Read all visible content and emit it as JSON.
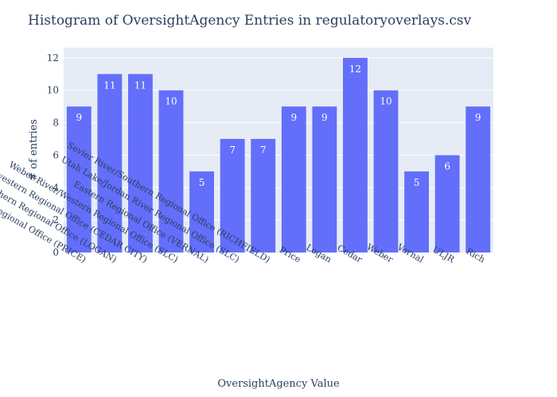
{
  "chart_data": {
    "type": "bar",
    "title": "Histogram of OversightAgency Entries in regulatoryoverlays.csv",
    "xlabel": "OversightAgency Value",
    "ylabel": "# of entries",
    "categories": [
      "Southeastern Regional Office (PRICE)",
      "Northern Regional Office (LOGAN)",
      "Southwestern Regional Office (CEDAR CITY)",
      "Weber River/Western Regional Office (SLC)",
      "Eastern Regional Office (VERNAL)",
      "Utah Lake/Jordan River Regional Office (SLC)",
      "Sevier River/Southern Regional Office (RICHFIELD)",
      "Price",
      "Logan",
      "Cedar",
      "Weber",
      "Vernal",
      "ULJR",
      "Rich"
    ],
    "values": [
      9,
      11,
      11,
      10,
      5,
      7,
      7,
      9,
      9,
      12,
      10,
      5,
      6,
      9
    ],
    "ylim": [
      0,
      12.63
    ],
    "yticks": [
      0,
      2,
      4,
      6,
      8,
      10,
      12
    ],
    "grid": true,
    "bar_color": "#636efa",
    "plot_bg": "#e5ecf6"
  }
}
